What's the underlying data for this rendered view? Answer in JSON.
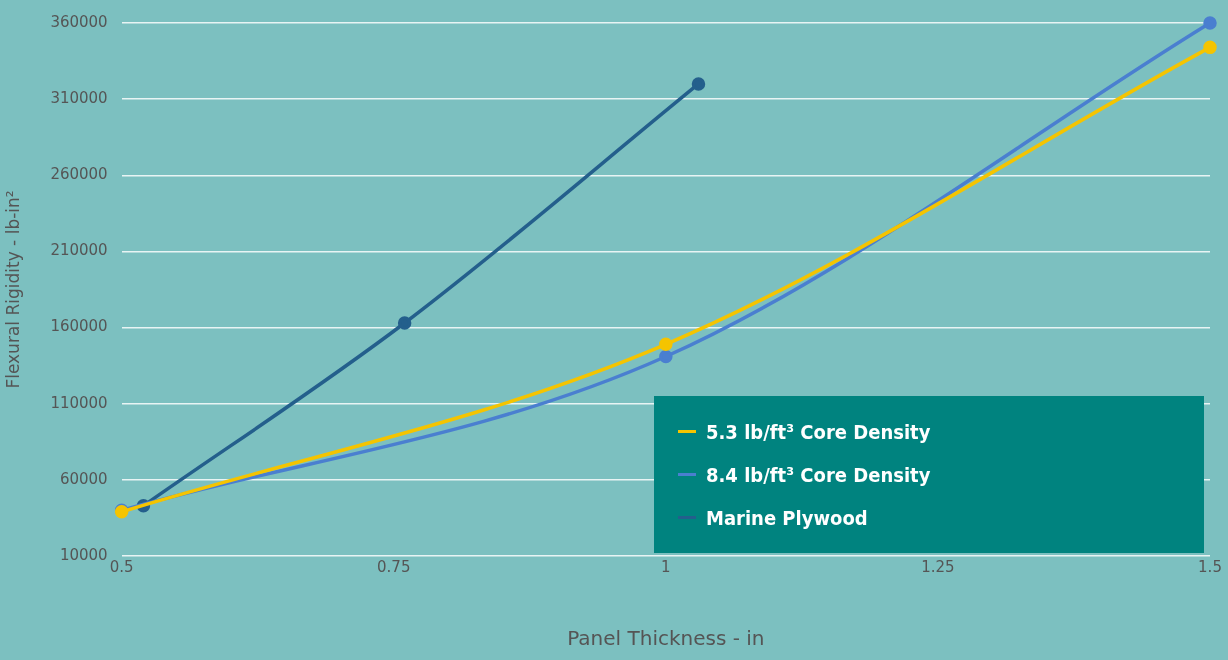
{
  "chart_data": {
    "type": "line",
    "xlabel": "Panel Thickness - in",
    "ylabel": "Flexural Rigidity - lb-in²",
    "xlim": [
      0.5,
      1.5
    ],
    "xticks": [
      0.5,
      0.75,
      1,
      1.25,
      1.5
    ],
    "ylim": [
      10000,
      360000
    ],
    "yticks": [
      10000,
      60000,
      110000,
      160000,
      210000,
      260000,
      310000,
      360000
    ],
    "grid": "y",
    "legend": "bottom right",
    "marker": "circle",
    "line_style": "solid",
    "series": [
      {
        "name": "5.3 lb/ft³ Core Density",
        "color": "#f5c400",
        "x": [
          0.5,
          1,
          1.5
        ],
        "values": [
          39000,
          149000,
          344000
        ]
      },
      {
        "name": "8.4 lb/ft³ Core Density",
        "color": "#4a7fd0",
        "x": [
          0.5,
          1,
          1.5
        ],
        "values": [
          40000,
          141000,
          360000
        ]
      },
      {
        "name": "Marine Plywood",
        "color": "#245f8c",
        "x": [
          0.52,
          0.76,
          1.03
        ],
        "values": [
          43000,
          163000,
          320000
        ]
      }
    ]
  }
}
